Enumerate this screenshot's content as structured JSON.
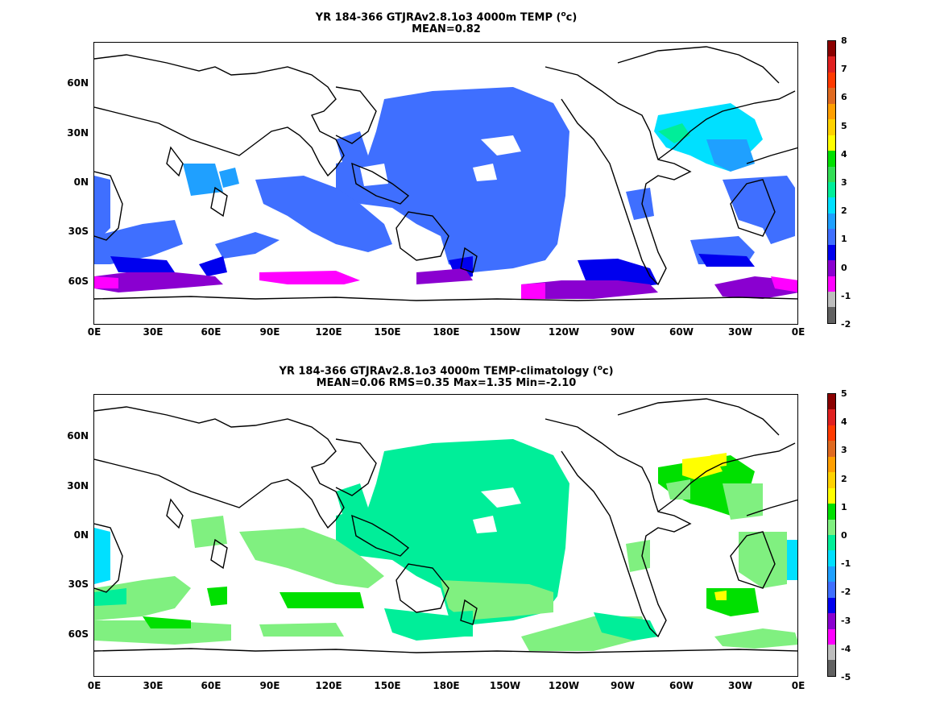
{
  "panels": [
    {
      "title_line1_prefix": "YR 184-366 GTJRAv2.8.1o3 4000m TEMP (",
      "title_unit_sup": "o",
      "title_unit": "c",
      "title_line1_suffix": ")",
      "title_line2": "MEAN=0.82",
      "y_ticks": [
        "60N",
        "30N",
        "0N",
        "30S",
        "60S"
      ],
      "x_ticks": [
        "0E",
        "30E",
        "60E",
        "90E",
        "120E",
        "150E",
        "180E",
        "150W",
        "120W",
        "90W",
        "60W",
        "30W",
        "0E"
      ],
      "colorbar": {
        "labels": [
          "8",
          "7",
          "6",
          "5",
          "4",
          "3",
          "2",
          "1",
          "0",
          "-1",
          "-2"
        ],
        "colors": [
          "#8b0000",
          "#e02020",
          "#ff3a00",
          "#e06a20",
          "#ff9f00",
          "#ffd200",
          "#ffff00",
          "#00e000",
          "#33dd55",
          "#00ee99",
          "#00e0ff",
          "#1fa0ff",
          "#3f6fff",
          "#0000ee",
          "#8a00d0",
          "#ff00ff",
          "#bdbdbd",
          "#616161"
        ]
      }
    },
    {
      "title_line1_prefix": "YR 184-366 GTJRAv2.8.1o3 4000m TEMP-climatology (",
      "title_unit_sup": "o",
      "title_unit": "c",
      "title_line1_suffix": ")",
      "title_line2": "MEAN=0.06   RMS=0.35   Max=1.35   Min=-2.10",
      "y_ticks": [
        "60N",
        "30N",
        "0N",
        "30S",
        "60S"
      ],
      "x_ticks": [
        "0E",
        "30E",
        "60E",
        "90E",
        "120E",
        "150E",
        "180E",
        "150W",
        "120W",
        "90W",
        "60W",
        "30W",
        "0E"
      ],
      "colorbar": {
        "labels": [
          "5",
          "4",
          "3",
          "2",
          "1",
          "0",
          "-1",
          "-2",
          "-3",
          "-4",
          "-5"
        ],
        "colors": [
          "#8b0000",
          "#e02020",
          "#ff3a00",
          "#e06a20",
          "#ff9f00",
          "#ffd200",
          "#ffff00",
          "#00e000",
          "#80f080",
          "#00ee99",
          "#00e0ff",
          "#1fa0ff",
          "#3f6fff",
          "#0000ee",
          "#8a00d0",
          "#ff00ff",
          "#bdbdbd",
          "#616161"
        ]
      }
    }
  ]
}
